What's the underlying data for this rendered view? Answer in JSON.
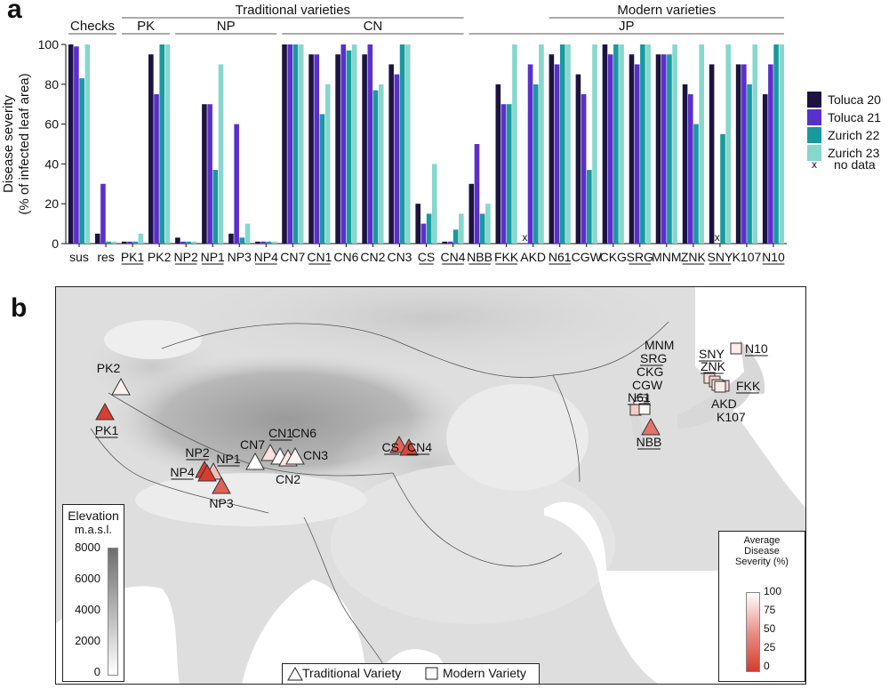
{
  "panels": {
    "a": "a",
    "b": "b"
  },
  "chart_data": {
    "type": "bar",
    "ylabel_line1": "Disease severity",
    "ylabel_line2": "(% of infected leaf area)",
    "ylim": [
      0,
      100
    ],
    "yticks": [
      0,
      20,
      40,
      60,
      80,
      100
    ],
    "grid": false,
    "legend_position": "right",
    "groups": [
      {
        "label": "Checks",
        "start": "sus",
        "end": "res",
        "level": 1
      },
      {
        "label": "Traditional varieties",
        "start": "PK1",
        "end": "CN4",
        "level": 0
      },
      {
        "label": "Modern varieties",
        "start": "N61",
        "end": "N10",
        "level": 0
      },
      {
        "label": "PK",
        "start": "PK1",
        "end": "PK2",
        "level": 1
      },
      {
        "label": "NP",
        "start": "NP2",
        "end": "NP4",
        "level": 1
      },
      {
        "label": "CN",
        "start": "CN7",
        "end": "CN4",
        "level": 1
      },
      {
        "label": "JP",
        "start": "NBB",
        "end": "N10",
        "level": 1
      }
    ],
    "categories": [
      "sus",
      "res",
      "PK1",
      "PK2",
      "NP2",
      "NP1",
      "NP3",
      "NP4",
      "CN7",
      "CN1",
      "CN6",
      "CN2",
      "CN3",
      "CS",
      "CN4",
      "NBB",
      "FKK",
      "AKD",
      "N61",
      "CGW",
      "CKG",
      "SRG",
      "MNM",
      "ZNK",
      "SNY",
      "K107",
      "N10"
    ],
    "underlined": [
      "PK1",
      "NP2",
      "NP1",
      "NP4",
      "CN1",
      "CS",
      "CN4",
      "NBB",
      "FKK",
      "N61",
      "SRG",
      "ZNK",
      "SNY",
      "N10"
    ],
    "series": [
      {
        "name": "Toluca 20",
        "color": "#1c1340",
        "values": [
          100,
          5,
          1,
          95,
          3,
          70,
          5,
          1,
          100,
          95,
          95,
          95,
          90,
          20,
          1,
          30,
          80,
          null,
          95,
          85,
          100,
          95,
          95,
          80,
          90,
          90,
          75
        ]
      },
      {
        "name": "Toluca 21",
        "color": "#5a2fcc",
        "values": [
          99,
          30,
          1,
          75,
          1,
          70,
          60,
          1,
          100,
          95,
          100,
          100,
          85,
          10,
          1,
          50,
          70,
          90,
          90,
          75,
          95,
          90,
          95,
          75,
          null,
          90,
          90
        ]
      },
      {
        "name": "Zurich 22",
        "color": "#17999f",
        "values": [
          83,
          1,
          1,
          100,
          1,
          37,
          3,
          1,
          100,
          65,
          97,
          77,
          100,
          15,
          7,
          15,
          70,
          80,
          100,
          37,
          100,
          100,
          95,
          60,
          55,
          80,
          100
        ]
      },
      {
        "name": "Zurich 23",
        "color": "#86d7cc",
        "values": [
          100,
          1,
          5,
          100,
          1,
          90,
          10,
          1,
          100,
          80,
          100,
          80,
          100,
          40,
          15,
          20,
          100,
          100,
          100,
          100,
          100,
          100,
          100,
          100,
          100,
          100,
          100
        ]
      }
    ],
    "missing": [
      {
        "category": "AKD",
        "series": "Toluca 20"
      },
      {
        "category": "SNY",
        "series": "Toluca 21"
      }
    ],
    "missing_marker": "x",
    "missing_label": "no data"
  },
  "map": {
    "elevation_legend": {
      "title_line1": "Elevation",
      "title_line2": "m.a.s.l.",
      "ticks": [
        "8000",
        "6000",
        "4000",
        "2000",
        "0"
      ]
    },
    "severity_legend": {
      "title_line1": "Average",
      "title_line2": "Disease",
      "title_line3": "Severity (%)",
      "ticks": [
        "100",
        "75",
        "50",
        "25",
        "0"
      ],
      "color_high": "#ffffff",
      "color_low": "#d63b2d"
    },
    "type_legend": {
      "traditional": "Traditional Variety",
      "modern": "Modern Variety"
    },
    "traditional_sites": [
      {
        "label": "PK2",
        "severity": 92,
        "underlined": false
      },
      {
        "label": "PK1",
        "severity": 2,
        "underlined": true
      },
      {
        "label": "NP2",
        "severity": 2,
        "underlined": true
      },
      {
        "label": "NP1",
        "severity": 67,
        "underlined": true
      },
      {
        "label": "NP4",
        "severity": 1,
        "underlined": true
      },
      {
        "label": "NP3",
        "severity": 20,
        "underlined": false
      },
      {
        "label": "CN7",
        "severity": 100,
        "underlined": false
      },
      {
        "label": "CN1",
        "severity": 84,
        "underlined": true
      },
      {
        "label": "CN6",
        "severity": 98,
        "underlined": false
      },
      {
        "label": "CN2",
        "severity": 88,
        "underlined": false
      },
      {
        "label": "CN3",
        "severity": 94,
        "underlined": false
      },
      {
        "label": "CS",
        "severity": 21,
        "underlined": true
      },
      {
        "label": "CN4",
        "severity": 6,
        "underlined": true
      }
    ],
    "modern_sites": [
      {
        "label": "MNM",
        "severity": 96,
        "underlined": false
      },
      {
        "label": "SRG",
        "severity": 96,
        "underlined": true
      },
      {
        "label": "CKG",
        "severity": 99,
        "underlined": false
      },
      {
        "label": "CGW",
        "severity": 74,
        "underlined": false
      },
      {
        "label": "N61",
        "severity": 96,
        "underlined": true
      },
      {
        "label": "NBB",
        "severity": 29,
        "underlined": true
      },
      {
        "label": "SNY",
        "severity": 82,
        "underlined": true
      },
      {
        "label": "ZNK",
        "severity": 79,
        "underlined": true
      },
      {
        "label": "FKK",
        "severity": 80,
        "underlined": true
      },
      {
        "label": "AKD",
        "severity": 90,
        "underlined": false
      },
      {
        "label": "K107",
        "severity": 90,
        "underlined": false
      },
      {
        "label": "N10",
        "severity": 91,
        "underlined": true
      }
    ]
  }
}
